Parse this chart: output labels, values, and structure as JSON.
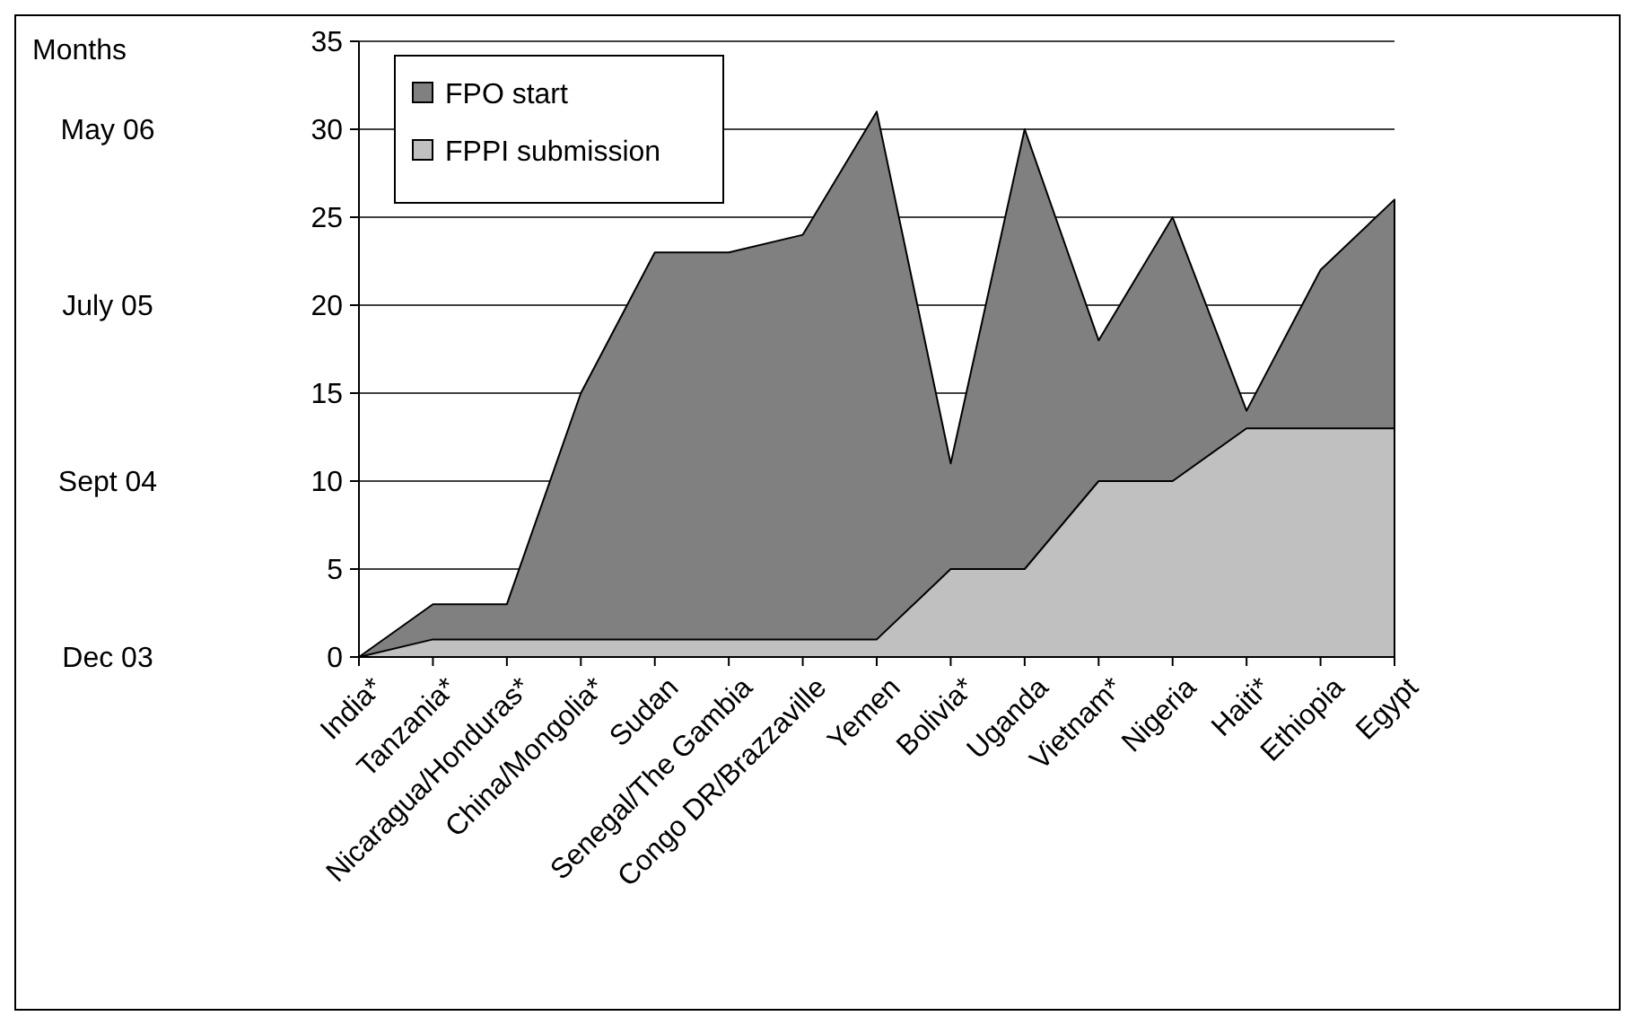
{
  "chart_data": {
    "type": "area",
    "categories": [
      "India*",
      "Tanzania*",
      "Nicaragua/Honduras*",
      "China/Mongolia*",
      "Sudan",
      "Senegal/The Gambia",
      "Congo DR/Brazzaville",
      "Yemen",
      "Bolivia*",
      "Uganda",
      "Vietnam*",
      "Nigeria",
      "Haiti*",
      "Ethiopia",
      "Egypt"
    ],
    "series": [
      {
        "name": "FPO start",
        "color": "#808080",
        "values": [
          0,
          3,
          3,
          15,
          23,
          23,
          24,
          31,
          11,
          30,
          18,
          25,
          14,
          22,
          26
        ]
      },
      {
        "name": "FPPI submission",
        "color": "#c0c0c0",
        "values": [
          0,
          1,
          1,
          1,
          1,
          1,
          1,
          1,
          5,
          5,
          10,
          10,
          13,
          13,
          13
        ]
      }
    ],
    "ylim": [
      0,
      35
    ],
    "yticks": [
      0,
      5,
      10,
      15,
      20,
      25,
      30,
      35
    ],
    "annotations": [
      "Months",
      "May 06",
      "July 05",
      "Sept 04",
      "Dec 03"
    ],
    "grid": "y",
    "legend": "top left"
  }
}
